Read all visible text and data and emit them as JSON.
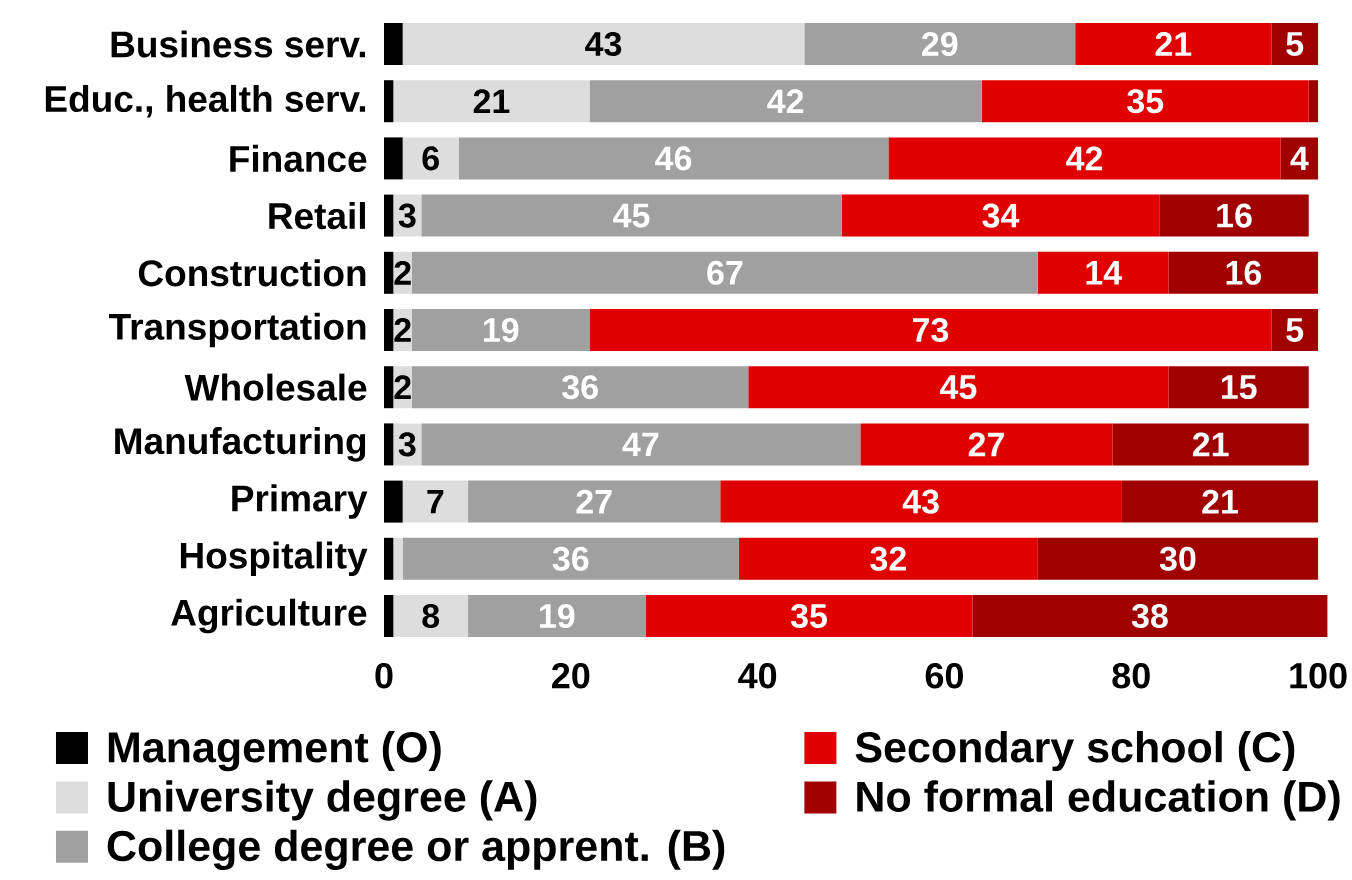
{
  "chart_data": {
    "type": "bar",
    "orientation": "horizontal",
    "stacked": true,
    "categories": [
      "Business serv.",
      "Educ., health serv.",
      "Finance",
      "Retail",
      "Construction",
      "Transportation",
      "Wholesale",
      "Manufacturing",
      "Primary",
      "Hospitality",
      "Agriculture"
    ],
    "series": [
      {
        "name": "Management (O)",
        "color": "#000000",
        "values": [
          2,
          1,
          2,
          1,
          1,
          1,
          1,
          1,
          2,
          1,
          1
        ]
      },
      {
        "name": "University degree (A)",
        "color": "#dddddd",
        "values": [
          43,
          21,
          6,
          3,
          2,
          2,
          2,
          3,
          7,
          1,
          8
        ],
        "value_labels": [
          "43",
          "21",
          "6",
          "3",
          "2",
          "2",
          "2",
          "3",
          "7",
          null,
          "8"
        ]
      },
      {
        "name": "College degree or apprent. (B)",
        "color": "#a0a0a0",
        "values": [
          29,
          42,
          46,
          45,
          67,
          19,
          36,
          47,
          27,
          36,
          19
        ],
        "value_labels": [
          "29",
          "42",
          "46",
          "45",
          "67",
          "19",
          "36",
          "47",
          "27",
          "36",
          "19"
        ]
      },
      {
        "name": "Secondary school (C)",
        "color": "#e00000",
        "values": [
          21,
          35,
          42,
          34,
          14,
          73,
          45,
          27,
          43,
          32,
          35
        ],
        "value_labels": [
          "21",
          "35",
          "42",
          "34",
          "14",
          "73",
          "45",
          "27",
          "43",
          "32",
          "35"
        ]
      },
      {
        "name": "No formal education (D)",
        "color": "#a00000",
        "values": [
          5,
          1,
          4,
          16,
          16,
          5,
          15,
          21,
          21,
          30,
          38
        ],
        "value_labels": [
          "5",
          null,
          "4",
          "16",
          "16",
          "5",
          "15",
          "21",
          "21",
          "30",
          "38"
        ]
      }
    ],
    "xlim": [
      0,
      101
    ],
    "xticks": [
      0,
      20,
      40,
      60,
      80,
      100
    ],
    "legend": "bottom"
  }
}
